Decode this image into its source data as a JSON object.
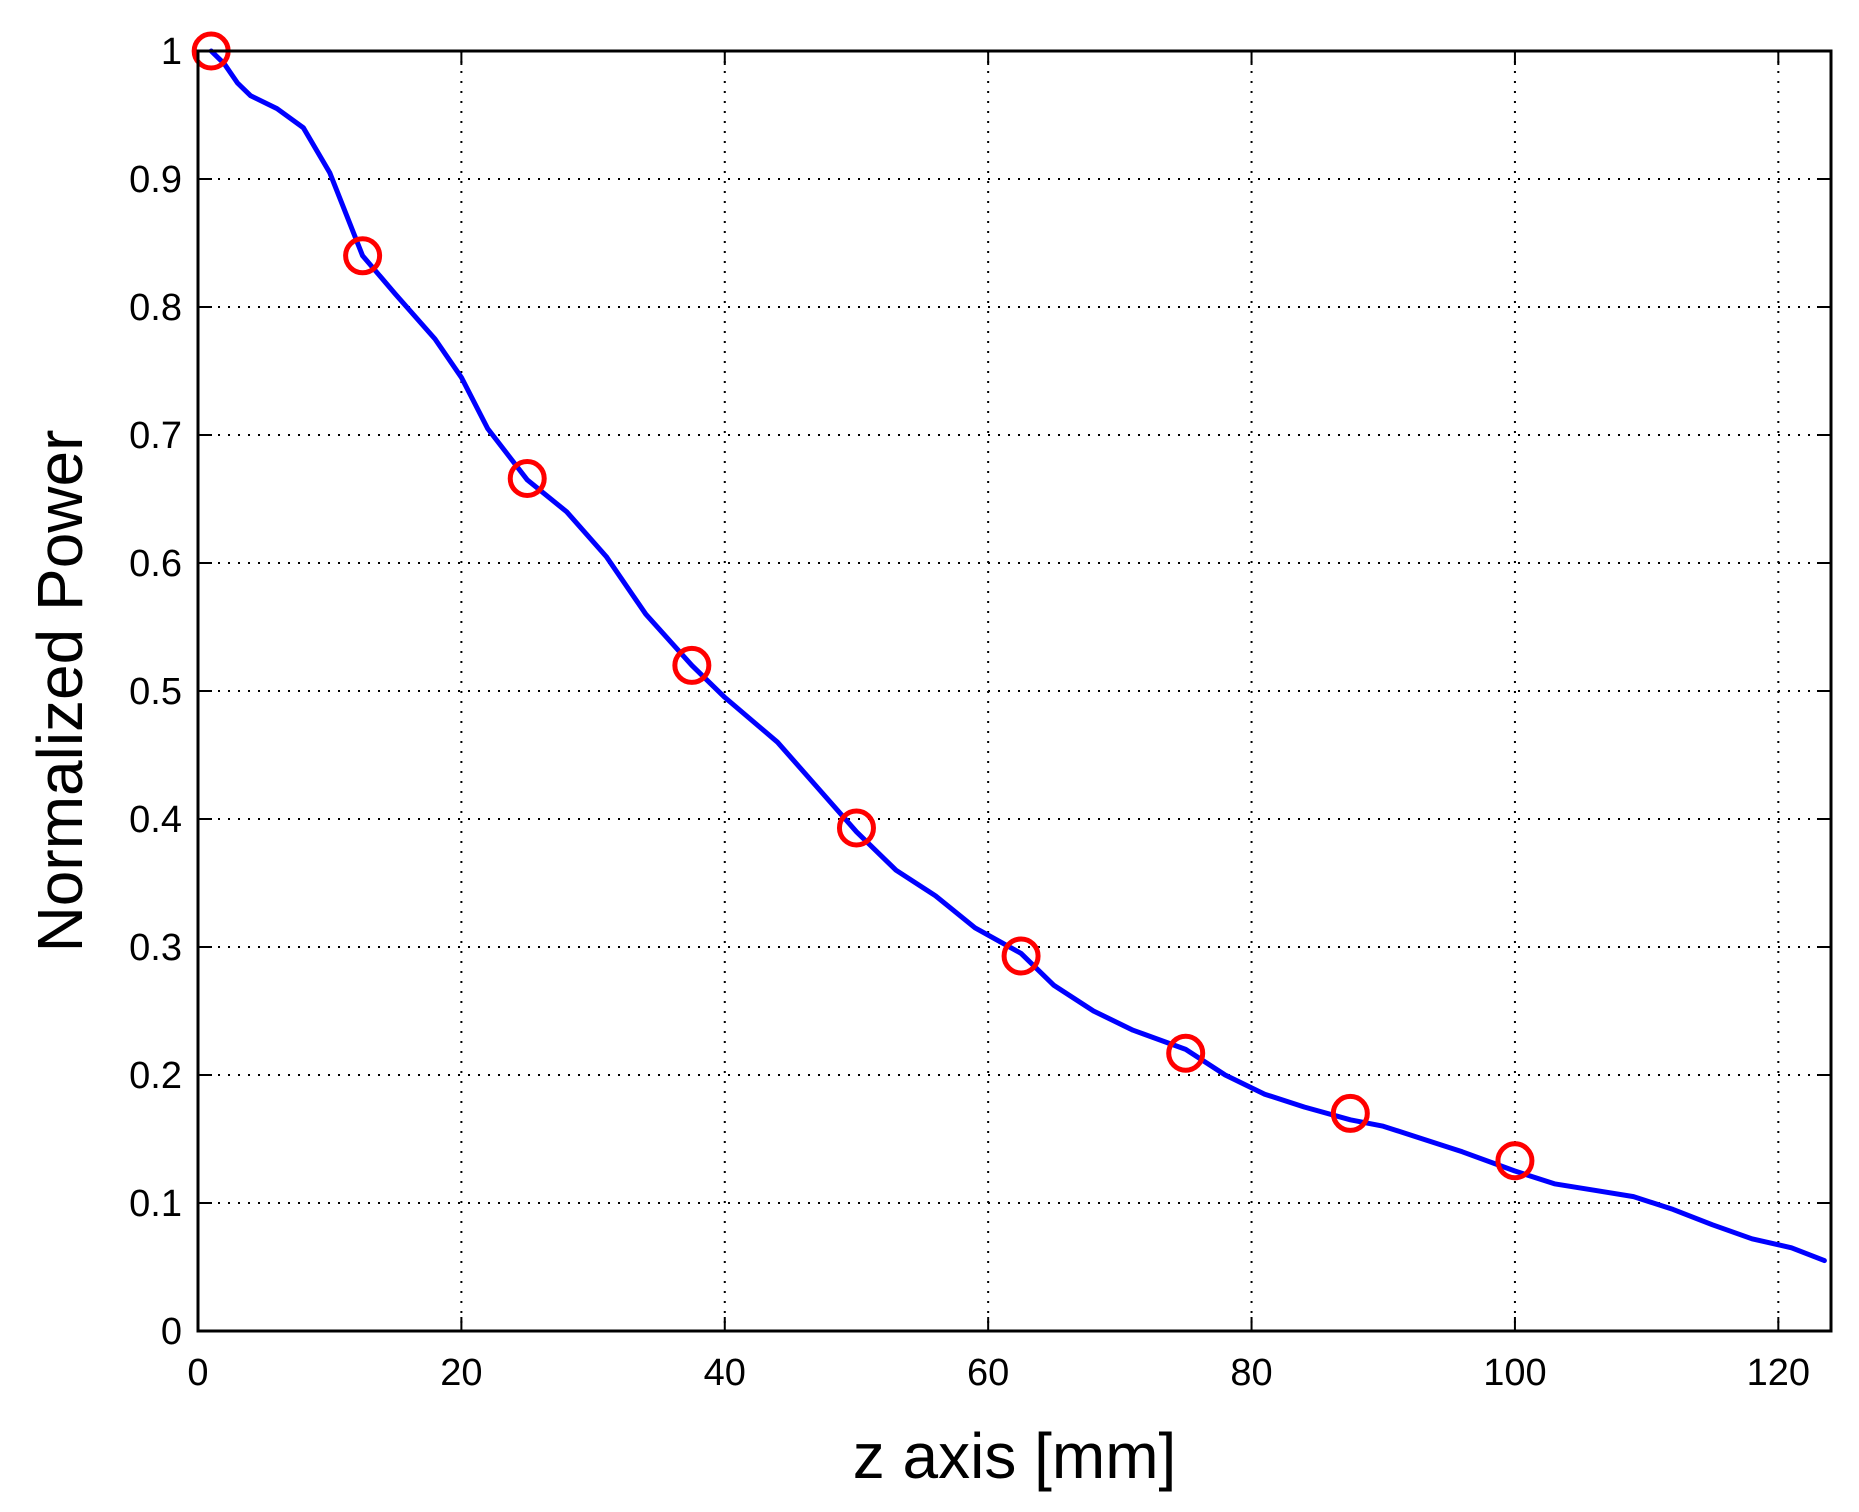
{
  "chart_data": {
    "type": "line",
    "title": "",
    "xlabel": "z axis [mm]",
    "ylabel": "Normalized Power",
    "xlim": [
      0,
      124
    ],
    "ylim": [
      0,
      1
    ],
    "xticks": [
      0,
      20,
      40,
      60,
      80,
      100,
      120
    ],
    "xtick_labels": [
      "0",
      "20",
      "40",
      "60",
      "80",
      "100",
      "120"
    ],
    "yticks": [
      0,
      0.1,
      0.2,
      0.3,
      0.4,
      0.5,
      0.6,
      0.7,
      0.8,
      0.9,
      1
    ],
    "ytick_labels": [
      "0",
      "0.1",
      "0.2",
      "0.3",
      "0.4",
      "0.5",
      "0.6",
      "0.7",
      "0.8",
      "0.9",
      "1"
    ],
    "grid": true,
    "legend": "none",
    "series": [
      {
        "kind": "line",
        "color": "#0000ff",
        "x": [
          1,
          2,
          3,
          4,
          6,
          8,
          10,
          12.5,
          15,
          18,
          20,
          22,
          25,
          28,
          31,
          34,
          37.5,
          40,
          44,
          47,
          50,
          53,
          56,
          59,
          62.5,
          65,
          68,
          71,
          75,
          78,
          81,
          84,
          87.5,
          90,
          93,
          96,
          100,
          103,
          106,
          109,
          112,
          115,
          118,
          121,
          123.5
        ],
        "y": [
          1.0,
          0.99,
          0.975,
          0.965,
          0.955,
          0.94,
          0.905,
          0.84,
          0.81,
          0.775,
          0.745,
          0.705,
          0.665,
          0.64,
          0.605,
          0.56,
          0.52,
          0.495,
          0.46,
          0.425,
          0.39,
          0.36,
          0.34,
          0.315,
          0.295,
          0.27,
          0.25,
          0.235,
          0.22,
          0.2,
          0.185,
          0.175,
          0.165,
          0.16,
          0.15,
          0.14,
          0.125,
          0.115,
          0.11,
          0.105,
          0.095,
          0.083,
          0.072,
          0.065,
          0.055
        ]
      },
      {
        "kind": "markers",
        "color": "#ff0000",
        "marker": "circle",
        "x": [
          1,
          12.5,
          25,
          37.5,
          50,
          62.5,
          75,
          87.5,
          100
        ],
        "y": [
          1.0,
          0.84,
          0.666,
          0.52,
          0.393,
          0.293,
          0.217,
          0.17,
          0.133
        ]
      }
    ]
  }
}
